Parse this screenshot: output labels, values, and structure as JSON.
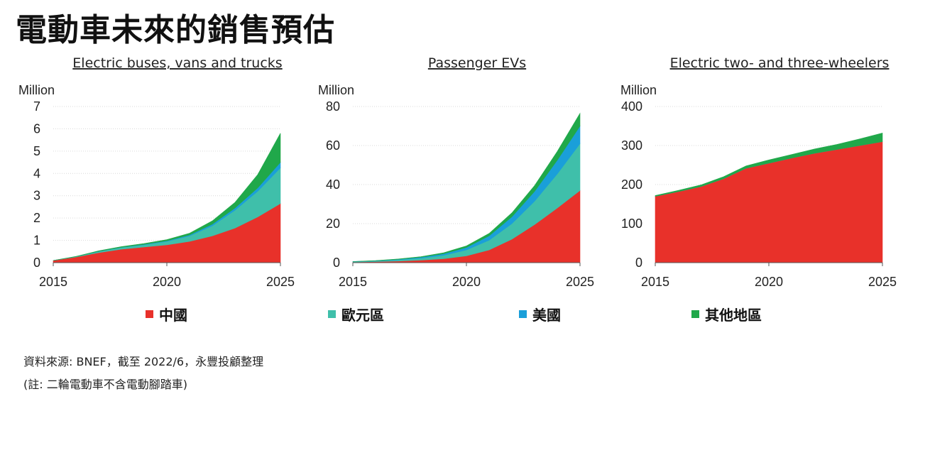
{
  "page": {
    "title": "電動車未來的銷售預估",
    "source_line1": "資料來源: BNEF，截至 2022/6，永豐投顧整理",
    "source_line2": "(註: 二輪電動車不含電動腳踏車)"
  },
  "legend": [
    {
      "label": "中國",
      "color": "#e8312a"
    },
    {
      "label": "歐元區",
      "color": "#3fbfaa"
    },
    {
      "label": "美國",
      "color": "#1a9fd9"
    },
    {
      "label": "其他地區",
      "color": "#20a84a"
    }
  ],
  "chart_data": [
    {
      "type": "area",
      "stacked": true,
      "title": "Electric buses, vans and trucks",
      "ylabel": "Million",
      "ylim": [
        0,
        7
      ],
      "yticks": [
        0,
        1,
        2,
        3,
        4,
        5,
        6,
        7
      ],
      "xticks": [
        2015,
        2020,
        2025
      ],
      "x": [
        2015,
        2016,
        2017,
        2018,
        2019,
        2020,
        2021,
        2022,
        2023,
        2024,
        2025
      ],
      "series": [
        {
          "name": "中國",
          "color": "#e8312a",
          "values": [
            0.1,
            0.25,
            0.45,
            0.6,
            0.7,
            0.8,
            0.95,
            1.2,
            1.55,
            2.05,
            2.65
          ]
        },
        {
          "name": "歐元區",
          "color": "#3fbfaa",
          "values": [
            0.0,
            0.02,
            0.05,
            0.08,
            0.1,
            0.15,
            0.25,
            0.45,
            0.8,
            1.15,
            1.6
          ]
        },
        {
          "name": "美國",
          "color": "#1a9fd9",
          "values": [
            0.0,
            0.0,
            0.01,
            0.01,
            0.02,
            0.03,
            0.04,
            0.07,
            0.1,
            0.15,
            0.25
          ]
        },
        {
          "name": "其他地區",
          "color": "#20a84a",
          "values": [
            0.0,
            0.01,
            0.02,
            0.03,
            0.04,
            0.05,
            0.08,
            0.15,
            0.25,
            0.6,
            1.3
          ]
        }
      ]
    },
    {
      "type": "area",
      "stacked": true,
      "title": "Passenger EVs",
      "ylabel": "Million",
      "ylim": [
        0,
        80
      ],
      "yticks": [
        0,
        20,
        40,
        60,
        80
      ],
      "xticks": [
        2015,
        2020,
        2025
      ],
      "x": [
        2015,
        2016,
        2017,
        2018,
        2019,
        2020,
        2021,
        2022,
        2023,
        2024,
        2025
      ],
      "series": [
        {
          "name": "中國",
          "color": "#e8312a",
          "values": [
            0.3,
            0.5,
            0.8,
            1.3,
            2.0,
            3.5,
            6.5,
            12.0,
            19.5,
            28.0,
            37.0
          ]
        },
        {
          "name": "歐元區",
          "color": "#3fbfaa",
          "values": [
            0.2,
            0.3,
            0.6,
            1.0,
            1.8,
            3.0,
            5.0,
            8.0,
            12.0,
            17.5,
            24.0
          ]
        },
        {
          "name": "美國",
          "color": "#1a9fd9",
          "values": [
            0.1,
            0.2,
            0.3,
            0.5,
            0.8,
            1.3,
            2.2,
            3.5,
            5.0,
            7.0,
            9.0
          ]
        },
        {
          "name": "其他地區",
          "color": "#20a84a",
          "values": [
            0.0,
            0.1,
            0.2,
            0.3,
            0.5,
            0.8,
            1.3,
            2.0,
            3.0,
            4.5,
            6.5
          ]
        }
      ]
    },
    {
      "type": "area",
      "stacked": true,
      "title": "Electric two- and three-wheelers",
      "ylabel": "Million",
      "ylim": [
        0,
        400
      ],
      "yticks": [
        0,
        100,
        200,
        300,
        400
      ],
      "xticks": [
        2015,
        2020,
        2025
      ],
      "x": [
        2015,
        2016,
        2017,
        2018,
        2019,
        2020,
        2021,
        2022,
        2023,
        2024,
        2025
      ],
      "series": [
        {
          "name": "中國",
          "color": "#e8312a",
          "values": [
            170,
            182,
            195,
            215,
            242,
            255,
            268,
            280,
            290,
            300,
            310
          ]
        },
        {
          "name": "歐元區",
          "color": "#3fbfaa",
          "values": [
            0,
            0,
            0,
            0,
            0,
            0,
            0,
            0,
            0,
            0,
            0
          ]
        },
        {
          "name": "美國",
          "color": "#1a9fd9",
          "values": [
            0,
            0,
            0,
            0,
            0,
            0,
            0,
            0,
            0,
            0,
            0
          ]
        },
        {
          "name": "其他地區",
          "color": "#20a84a",
          "values": [
            2,
            3,
            4,
            5,
            6,
            8,
            9,
            11,
            13,
            17,
            22
          ]
        }
      ]
    }
  ]
}
